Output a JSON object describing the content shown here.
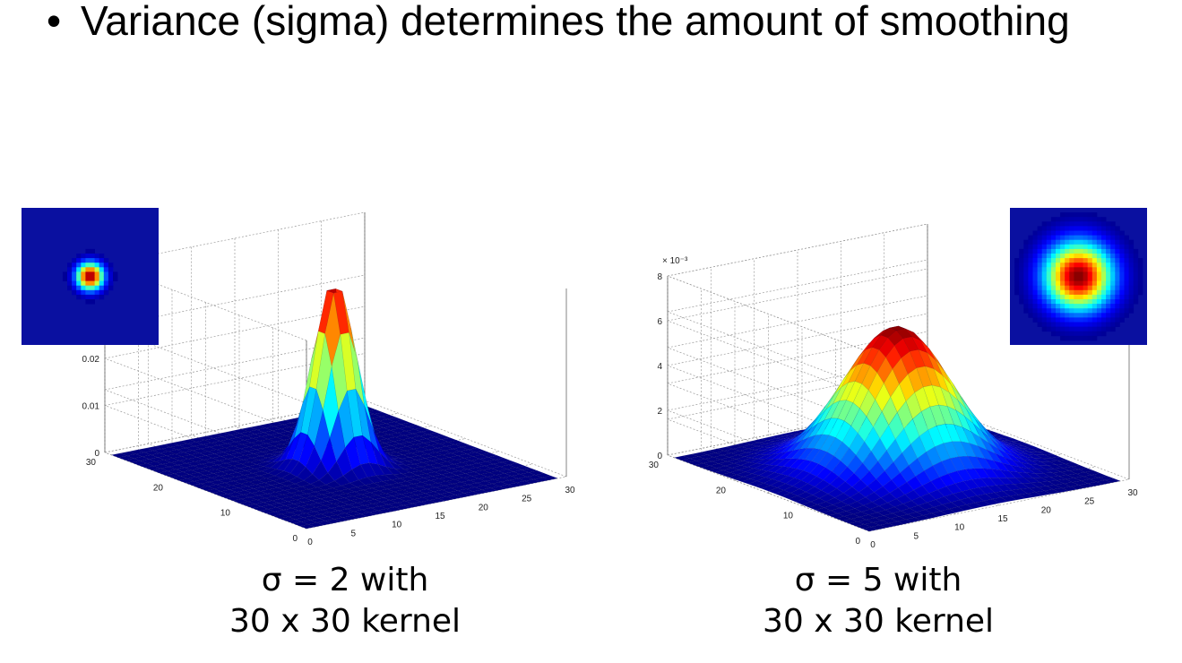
{
  "slide": {
    "bullet": "Variance (sigma) determines the amount of smoothing"
  },
  "figures": [
    {
      "id": "left",
      "sigma": 2,
      "kernel_size": 30,
      "z_ticks": [
        "0",
        "0.01",
        "0.02"
      ],
      "z_max": 0.04,
      "z_multiplier": "",
      "y_ticks": [
        "0",
        "10",
        "20",
        "30"
      ],
      "x_ticks": [
        "0",
        "5",
        "10",
        "15",
        "20",
        "25",
        "30"
      ],
      "caption_line1": "σ = 2 with",
      "caption_line2": "30 x 30 kernel",
      "colormap": "jet"
    },
    {
      "id": "right",
      "sigma": 5,
      "kernel_size": 30,
      "z_ticks": [
        "0",
        "2",
        "4",
        "6",
        "8"
      ],
      "z_max": 8,
      "z_multiplier": "× 10⁻³",
      "y_ticks": [
        "0",
        "10",
        "20",
        "30"
      ],
      "x_ticks": [
        "0",
        "5",
        "10",
        "15",
        "20",
        "25",
        "30"
      ],
      "caption_line1": "σ = 5 with",
      "caption_line2": "30 x 30 kernel",
      "colormap": "jet"
    }
  ],
  "colors": {
    "floor": "#1c2aa8",
    "inset_bg": "#0a10a0",
    "grid": "#9a9a9a"
  }
}
